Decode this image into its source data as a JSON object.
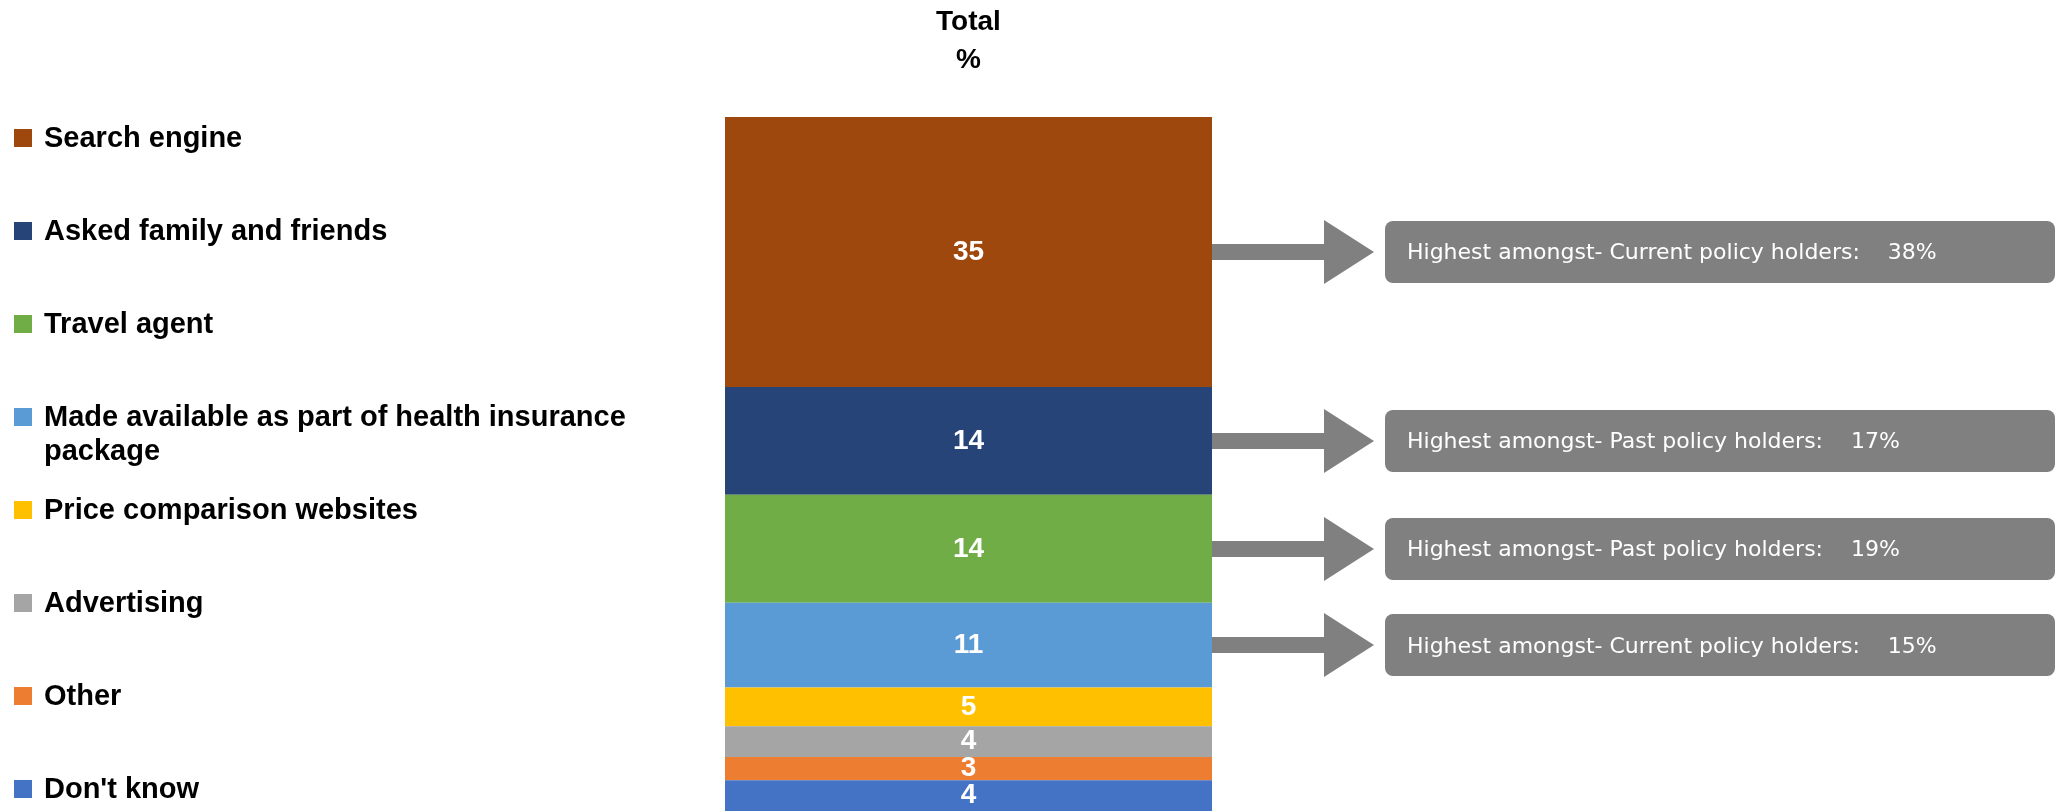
{
  "chart_data": {
    "type": "bar",
    "stacked": true,
    "title": "Total %",
    "categories": [
      null
    ],
    "tick_labels": false,
    "legend": "left",
    "data_labels": true,
    "series": [
      {
        "name": "Don't know",
        "color": "#4472c4",
        "values": [
          4
        ]
      },
      {
        "name": "Other",
        "color": "#ed7d31",
        "values": [
          3
        ]
      },
      {
        "name": "Advertising",
        "color": "#a5a5a5",
        "values": [
          4
        ]
      },
      {
        "name": "Price comparison websites",
        "color": "#ffc000",
        "values": [
          5
        ]
      },
      {
        "name": "Made available as part of health insurance package",
        "color": "#5b9bd5",
        "values": [
          11
        ]
      },
      {
        "name": "Travel agent",
        "color": "#70ad47",
        "values": [
          14
        ]
      },
      {
        "name": "Asked family and friends",
        "color": "#264478",
        "values": [
          14
        ]
      },
      {
        "name": "Search engine",
        "color": "#9e480e",
        "values": [
          35
        ]
      }
    ],
    "annotations": [
      "Highest amongst- Current policy holders:    38%",
      "Highest amongst- Past policy holders:    17%",
      "Highest amongst- Past policy holders:    19%",
      "Highest amongst- Current policy holders:    15%"
    ]
  }
}
